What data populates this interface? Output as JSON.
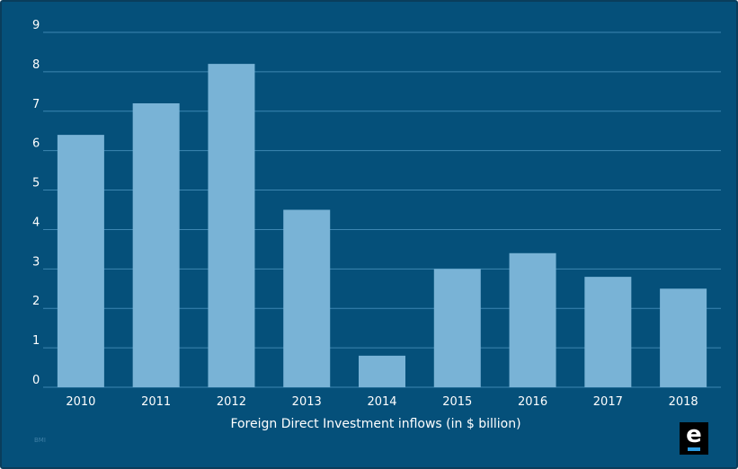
{
  "chart_data": {
    "type": "bar",
    "categories": [
      "2010",
      "2011",
      "2012",
      "2013",
      "2014",
      "2015",
      "2016",
      "2017",
      "2018"
    ],
    "values": [
      6.4,
      7.2,
      8.2,
      4.5,
      0.8,
      3.0,
      3.4,
      2.8,
      2.5
    ],
    "yticks": [
      "0",
      "1",
      "2",
      "3",
      "4",
      "5",
      "6",
      "7",
      "8",
      "9"
    ],
    "ylim": [
      0,
      9
    ],
    "xlabel": "Foreign Direct Investment inflows (in $ billion)",
    "title": "",
    "ylabel": "",
    "grid": true,
    "colors": {
      "background": "#05507a",
      "bar": "#79b3d6",
      "grid": "#3d86b1",
      "text": "#ffffff"
    }
  },
  "footer": {
    "source_text": "BMI",
    "logo_letter": "e",
    "logo_accent": "#2a9be0"
  }
}
